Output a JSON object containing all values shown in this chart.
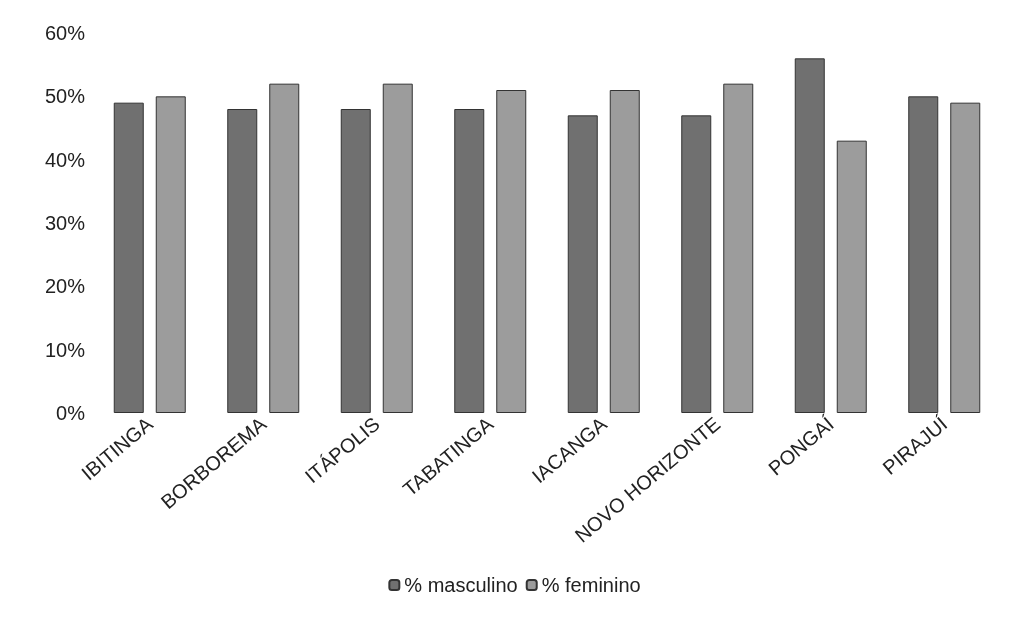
{
  "chart_data": {
    "type": "bar",
    "categories": [
      "IBITINGA",
      "BORBOREMA",
      "ITÁPOLIS",
      "TABATINGA",
      "IACANGA",
      "NOVO HORIZONTE",
      "PONGAÍ",
      "PIRAJUÍ"
    ],
    "series": [
      {
        "name": "% masculino",
        "color": "#707070",
        "values": [
          49,
          48,
          48,
          48,
          47,
          47,
          56,
          50
        ]
      },
      {
        "name": "% feminino",
        "color": "#9c9c9c",
        "values": [
          50,
          52,
          52,
          51,
          51,
          52,
          43,
          49
        ]
      }
    ],
    "ylim": [
      0,
      60
    ],
    "yticks": [
      {
        "value": 0,
        "label": "0%"
      },
      {
        "value": 10,
        "label": "10%"
      },
      {
        "value": 20,
        "label": "20%"
      },
      {
        "value": 30,
        "label": "30%"
      },
      {
        "value": 40,
        "label": "40%"
      },
      {
        "value": 50,
        "label": "50%"
      },
      {
        "value": 60,
        "label": "60%"
      }
    ],
    "grid": false,
    "legend": "bottom"
  }
}
